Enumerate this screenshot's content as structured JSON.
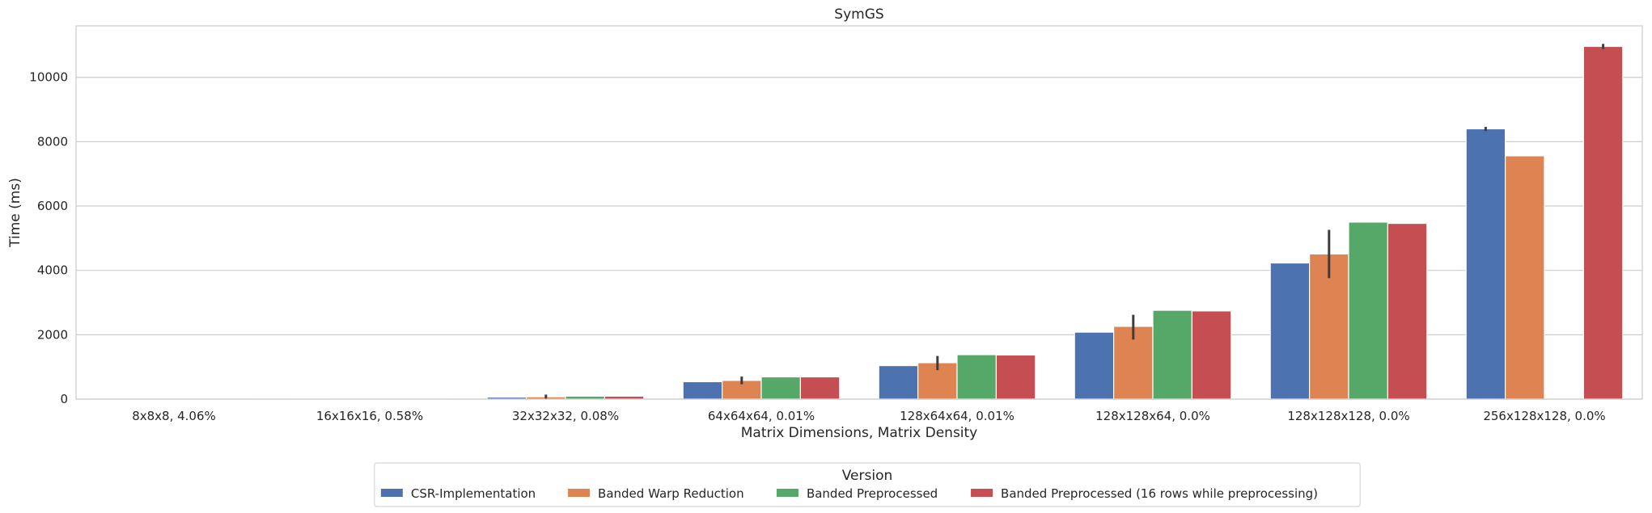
{
  "chart_data": {
    "type": "bar",
    "title": "SymGS",
    "xlabel": "Matrix Dimensions, Matrix Density",
    "ylabel": "Time (ms)",
    "ylim": [
      0,
      11600
    ],
    "yticks": [
      0,
      2000,
      4000,
      6000,
      8000,
      10000
    ],
    "grid": "horizontal",
    "legend_title": "Version",
    "legend_position": "bottom-center",
    "categories": [
      "8x8x8, 4.06%",
      "16x16x16, 0.58%",
      "32x32x32, 0.08%",
      "64x64x64, 0.01%",
      "128x64x64, 0.01%",
      "128x128x64, 0.0%",
      "128x128x128, 0.0%",
      "256x128x128, 0.0%"
    ],
    "series": [
      {
        "name": "CSR-Implementation",
        "color": "#4c72b0",
        "values": [
          1,
          7,
          60,
          540,
          1040,
          2080,
          4230,
          8400
        ],
        "errors": [
          null,
          null,
          null,
          null,
          null,
          null,
          null,
          [
            8330,
            8460
          ]
        ]
      },
      {
        "name": "Banded Warp Reduction",
        "color": "#dd8452",
        "values": [
          1,
          8,
          70,
          580,
          1130,
          2260,
          4510,
          7560
        ],
        "errors": [
          null,
          null,
          [
            0,
            140
          ],
          [
            460,
            700
          ],
          [
            900,
            1340
          ],
          [
            1850,
            2620
          ],
          [
            3760,
            5260
          ],
          null
        ]
      },
      {
        "name": "Banded Preprocessed",
        "color": "#55a868",
        "values": [
          1,
          9,
          90,
          690,
          1380,
          2760,
          5500,
          null
        ],
        "errors": [
          null,
          null,
          null,
          null,
          null,
          null,
          null,
          null
        ]
      },
      {
        "name": "Banded Preprocessed (16 rows while preprocessing)",
        "color": "#c44e52",
        "values": [
          1,
          9,
          90,
          690,
          1370,
          2740,
          5460,
          10960
        ],
        "errors": [
          null,
          null,
          null,
          null,
          null,
          null,
          null,
          [
            10880,
            11040
          ]
        ]
      }
    ]
  }
}
